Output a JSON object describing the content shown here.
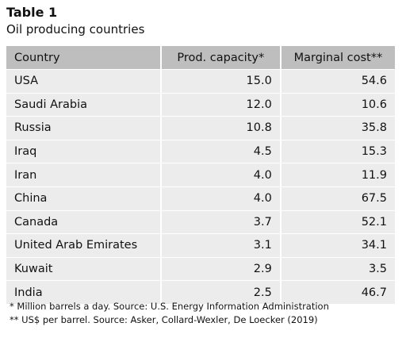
{
  "caption": {
    "label": "Table 1",
    "title": "Oil producing countries"
  },
  "table": {
    "headers": [
      "Country",
      "Prod. capacity*",
      "Marginal cost**"
    ],
    "rows": [
      [
        "USA",
        "15.0",
        "54.6"
      ],
      [
        "Saudi Arabia",
        "12.0",
        "10.6"
      ],
      [
        "Russia",
        "10.8",
        "35.8"
      ],
      [
        "Iraq",
        "4.5",
        "15.3"
      ],
      [
        "Iran",
        "4.0",
        "11.9"
      ],
      [
        "China",
        "4.0",
        "67.5"
      ],
      [
        "Canada",
        "3.7",
        "52.1"
      ],
      [
        "United Arab Emirates",
        "3.1",
        "34.1"
      ],
      [
        "Kuwait",
        "2.9",
        "3.5"
      ],
      [
        "India",
        "2.5",
        "46.7"
      ]
    ]
  },
  "footnotes": [
    "* Million barrels a day. Source: U.S. Energy Information Administration",
    "** US$ per barrel. Source: Asker, Collard-Wexler, De Loecker (2019)"
  ],
  "colors": {
    "header_bg": "#bebebe",
    "row_bg": "#ececec",
    "text": "#111111"
  }
}
